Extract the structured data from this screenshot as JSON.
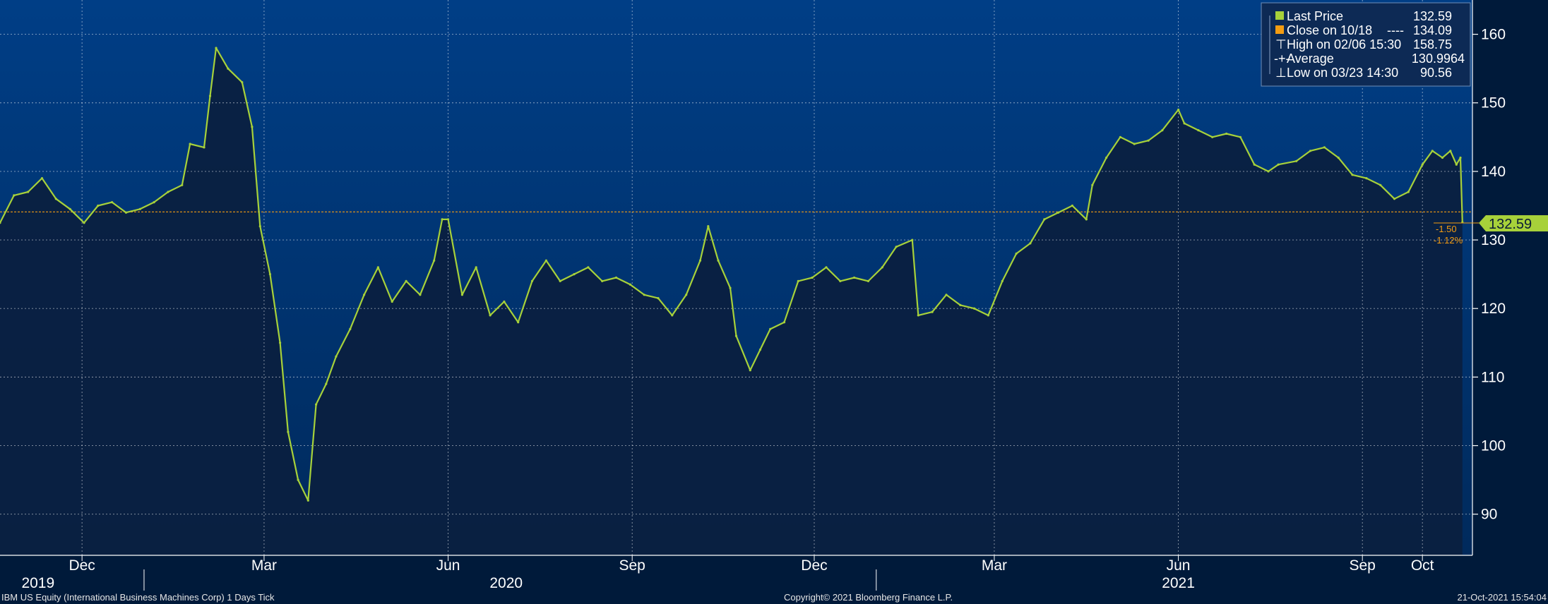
{
  "footer": {
    "security": "IBM US Equity (International Business Machines Corp) 1 Days  Tick",
    "copyright": "Copyright© 2021 Bloomberg Finance L.P.",
    "timestamp": "21-Oct-2021 15:54:04"
  },
  "legend": {
    "last_price": {
      "label": "Last Price",
      "value": "132.59"
    },
    "close": {
      "label": "Close on 10/18",
      "value": "134.09"
    },
    "high": {
      "label": "High on 02/06 15:30",
      "value": "158.75"
    },
    "average": {
      "label": "Average",
      "value": "130.9964"
    },
    "low": {
      "label": "Low on 03/23 14:30",
      "value": "90.56"
    }
  },
  "right_tag": {
    "price": "132.59",
    "change": "-1.50",
    "change_pct": "-1.12%"
  },
  "colors": {
    "background_top": "#003e86",
    "background_bottom": "#001a3a",
    "series": "#a7d13a",
    "close_line": "#f39c12",
    "grid": "#ffffff"
  },
  "chart_data": {
    "type": "line",
    "ylim": [
      84,
      165
    ],
    "yticks": [
      90,
      100,
      110,
      120,
      130,
      140,
      150,
      160
    ],
    "xlim": [
      "2019-10-21",
      "2021-10-26"
    ],
    "month_ticks": [
      {
        "label": "Dec",
        "date": "2019-12-01"
      },
      {
        "label": "Mar",
        "date": "2020-03-01"
      },
      {
        "label": "Jun",
        "date": "2020-06-01"
      },
      {
        "label": "Sep",
        "date": "2020-09-01"
      },
      {
        "label": "Dec",
        "date": "2020-12-01"
      },
      {
        "label": "Mar",
        "date": "2021-03-01"
      },
      {
        "label": "Jun",
        "date": "2021-06-01"
      },
      {
        "label": "Sep",
        "date": "2021-09-01"
      },
      {
        "label": "Oct",
        "date": "2021-10-01"
      }
    ],
    "year_ticks": [
      {
        "label": "2019",
        "date": "2019-11-09"
      },
      {
        "label": "2020",
        "date": "2020-06-30"
      },
      {
        "label": "2021",
        "date": "2021-06-01"
      }
    ],
    "year_separators": [
      "2020-01-01",
      "2021-01-01"
    ],
    "close_line": 134.09,
    "series": [
      {
        "name": "Last Price",
        "points": [
          [
            "2019-10-21",
            132.5
          ],
          [
            "2019-10-28",
            136.5
          ],
          [
            "2019-11-04",
            137.0
          ],
          [
            "2019-11-11",
            139.0
          ],
          [
            "2019-11-18",
            136.0
          ],
          [
            "2019-11-25",
            134.5
          ],
          [
            "2019-12-02",
            132.5
          ],
          [
            "2019-12-09",
            135.0
          ],
          [
            "2019-12-16",
            135.5
          ],
          [
            "2019-12-23",
            134.0
          ],
          [
            "2019-12-30",
            134.5
          ],
          [
            "2020-01-06",
            135.5
          ],
          [
            "2020-01-13",
            137.0
          ],
          [
            "2020-01-20",
            138.0
          ],
          [
            "2020-01-24",
            144.0
          ],
          [
            "2020-01-31",
            143.5
          ],
          [
            "2020-02-03",
            151.0
          ],
          [
            "2020-02-06",
            158.0
          ],
          [
            "2020-02-12",
            155.0
          ],
          [
            "2020-02-19",
            153.0
          ],
          [
            "2020-02-24",
            146.5
          ],
          [
            "2020-02-28",
            132.0
          ],
          [
            "2020-03-04",
            125.0
          ],
          [
            "2020-03-09",
            115.0
          ],
          [
            "2020-03-13",
            102.0
          ],
          [
            "2020-03-18",
            95.0
          ],
          [
            "2020-03-23",
            92.0
          ],
          [
            "2020-03-27",
            106.0
          ],
          [
            "2020-04-01",
            109.0
          ],
          [
            "2020-04-06",
            113.0
          ],
          [
            "2020-04-13",
            117.0
          ],
          [
            "2020-04-20",
            122.0
          ],
          [
            "2020-04-27",
            126.0
          ],
          [
            "2020-05-04",
            121.0
          ],
          [
            "2020-05-11",
            124.0
          ],
          [
            "2020-05-18",
            122.0
          ],
          [
            "2020-05-25",
            127.0
          ],
          [
            "2020-05-29",
            133.0
          ],
          [
            "2020-06-01",
            133.0
          ],
          [
            "2020-06-08",
            122.0
          ],
          [
            "2020-06-15",
            126.0
          ],
          [
            "2020-06-22",
            119.0
          ],
          [
            "2020-06-29",
            121.0
          ],
          [
            "2020-07-06",
            118.0
          ],
          [
            "2020-07-13",
            124.0
          ],
          [
            "2020-07-20",
            127.0
          ],
          [
            "2020-07-27",
            124.0
          ],
          [
            "2020-08-03",
            125.0
          ],
          [
            "2020-08-10",
            126.0
          ],
          [
            "2020-08-17",
            124.0
          ],
          [
            "2020-08-24",
            124.5
          ],
          [
            "2020-08-31",
            123.5
          ],
          [
            "2020-09-07",
            122.0
          ],
          [
            "2020-09-14",
            121.5
          ],
          [
            "2020-09-21",
            119.0
          ],
          [
            "2020-09-28",
            122.0
          ],
          [
            "2020-10-05",
            127.0
          ],
          [
            "2020-10-09",
            132.0
          ],
          [
            "2020-10-14",
            127.0
          ],
          [
            "2020-10-20",
            123.0
          ],
          [
            "2020-10-23",
            116.0
          ],
          [
            "2020-10-30",
            111.0
          ],
          [
            "2020-11-04",
            114.0
          ],
          [
            "2020-11-09",
            117.0
          ],
          [
            "2020-11-16",
            118.0
          ],
          [
            "2020-11-23",
            124.0
          ],
          [
            "2020-11-30",
            124.5
          ],
          [
            "2020-12-07",
            126.0
          ],
          [
            "2020-12-14",
            124.0
          ],
          [
            "2020-12-21",
            124.5
          ],
          [
            "2020-12-28",
            124.0
          ],
          [
            "2021-01-04",
            126.0
          ],
          [
            "2021-01-11",
            129.0
          ],
          [
            "2021-01-19",
            130.0
          ],
          [
            "2021-01-22",
            119.0
          ],
          [
            "2021-01-29",
            119.5
          ],
          [
            "2021-02-05",
            122.0
          ],
          [
            "2021-02-12",
            120.5
          ],
          [
            "2021-02-19",
            120.0
          ],
          [
            "2021-02-26",
            119.0
          ],
          [
            "2021-03-05",
            124.0
          ],
          [
            "2021-03-12",
            128.0
          ],
          [
            "2021-03-19",
            129.5
          ],
          [
            "2021-03-26",
            133.0
          ],
          [
            "2021-04-02",
            134.0
          ],
          [
            "2021-04-09",
            135.0
          ],
          [
            "2021-04-16",
            133.0
          ],
          [
            "2021-04-19",
            138.0
          ],
          [
            "2021-04-26",
            142.0
          ],
          [
            "2021-05-03",
            145.0
          ],
          [
            "2021-05-10",
            144.0
          ],
          [
            "2021-05-17",
            144.5
          ],
          [
            "2021-05-24",
            146.0
          ],
          [
            "2021-06-01",
            149.0
          ],
          [
            "2021-06-04",
            147.0
          ],
          [
            "2021-06-11",
            146.0
          ],
          [
            "2021-06-18",
            145.0
          ],
          [
            "2021-06-25",
            145.5
          ],
          [
            "2021-07-02",
            145.0
          ],
          [
            "2021-07-09",
            141.0
          ],
          [
            "2021-07-16",
            140.0
          ],
          [
            "2021-07-21",
            141.0
          ],
          [
            "2021-07-30",
            141.5
          ],
          [
            "2021-08-06",
            143.0
          ],
          [
            "2021-08-13",
            143.5
          ],
          [
            "2021-08-20",
            142.0
          ],
          [
            "2021-08-27",
            139.5
          ],
          [
            "2021-09-03",
            139.0
          ],
          [
            "2021-09-10",
            138.0
          ],
          [
            "2021-09-17",
            136.0
          ],
          [
            "2021-09-24",
            137.0
          ],
          [
            "2021-10-01",
            141.0
          ],
          [
            "2021-10-06",
            143.0
          ],
          [
            "2021-10-11",
            142.0
          ],
          [
            "2021-10-15",
            143.0
          ],
          [
            "2021-10-18",
            141.0
          ],
          [
            "2021-10-20",
            142.0
          ],
          [
            "2021-10-21",
            132.59
          ]
        ]
      }
    ]
  }
}
